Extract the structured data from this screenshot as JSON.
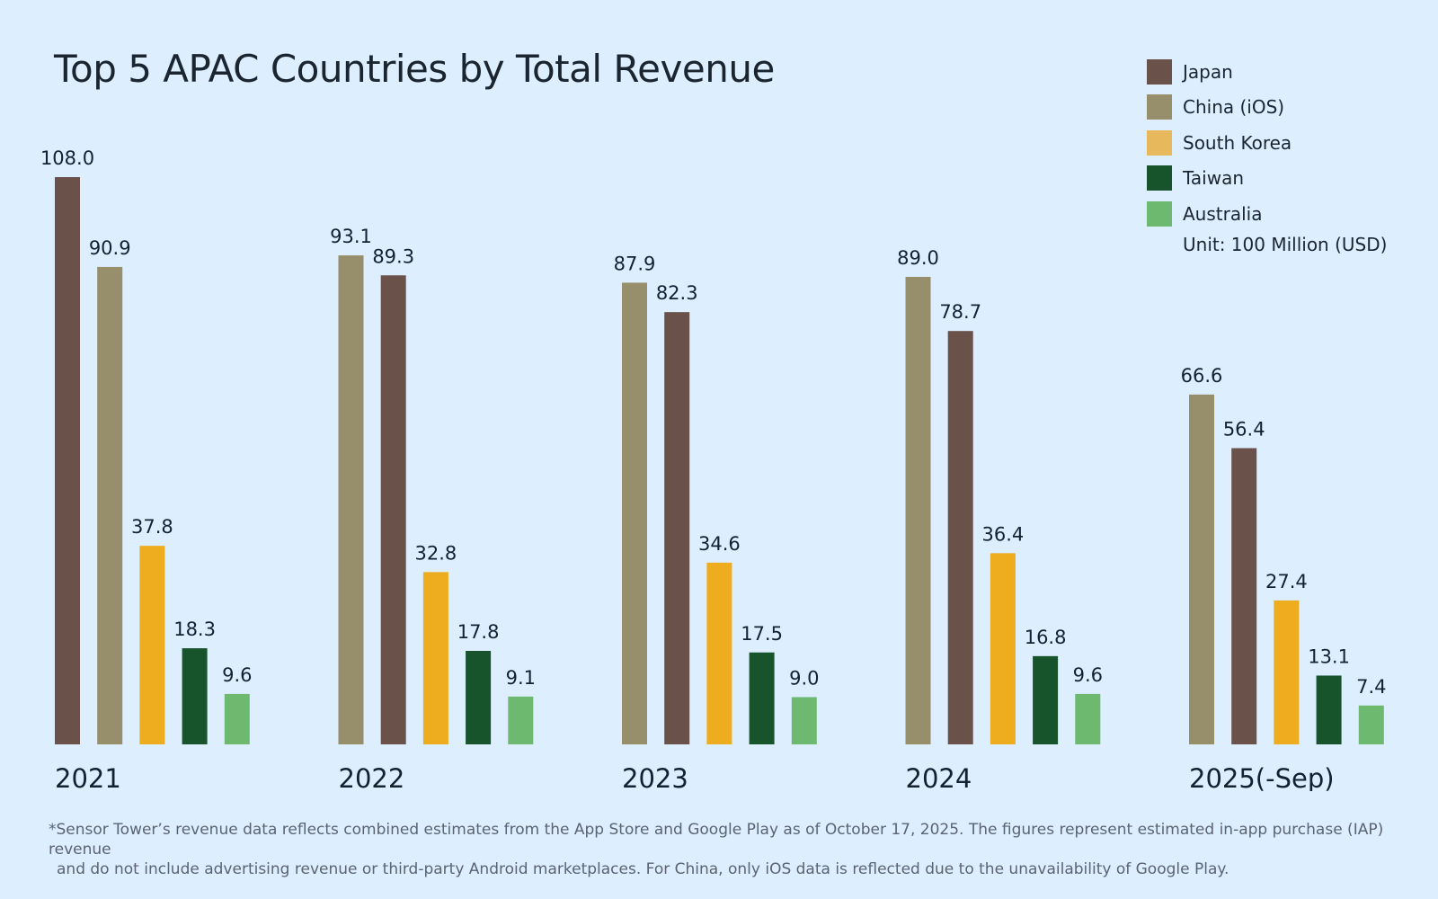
{
  "chart_data": {
    "type": "bar",
    "title": "Top 5 APAC Countries by Total Revenue",
    "unit": "Unit: 100 Million (USD)",
    "xlabel": "",
    "ylabel": "",
    "grid": false,
    "legend_position": "top-right",
    "categories": [
      "2021",
      "2022",
      "2023",
      "2024",
      "2025(-Sep)"
    ],
    "series": [
      {
        "name": "Japan",
        "color": "#6a524b"
      },
      {
        "name": "China (iOS)",
        "color": "#978e6c"
      },
      {
        "name": "South Korea",
        "color": "#eeac1f"
      },
      {
        "name": "Taiwan",
        "color": "#17532b"
      },
      {
        "name": "Australia",
        "color": "#6cb96f"
      }
    ],
    "groups": [
      {
        "category": "2021",
        "bars": [
          {
            "series": "Japan",
            "value": 108.0,
            "label": "108.0"
          },
          {
            "series": "China (iOS)",
            "value": 90.9,
            "label": "90.9"
          },
          {
            "series": "South Korea",
            "value": 37.8,
            "label": "37.8"
          },
          {
            "series": "Taiwan",
            "value": 18.3,
            "label": "18.3"
          },
          {
            "series": "Australia",
            "value": 9.6,
            "label": "9.6"
          }
        ]
      },
      {
        "category": "2022",
        "bars": [
          {
            "series": "China (iOS)",
            "value": 93.1,
            "label": "93.1"
          },
          {
            "series": "Japan",
            "value": 89.3,
            "label": "89.3"
          },
          {
            "series": "South Korea",
            "value": 32.8,
            "label": "32.8"
          },
          {
            "series": "Taiwan",
            "value": 17.8,
            "label": "17.8"
          },
          {
            "series": "Australia",
            "value": 9.1,
            "label": "9.1"
          }
        ]
      },
      {
        "category": "2023",
        "bars": [
          {
            "series": "China (iOS)",
            "value": 87.9,
            "label": "87.9"
          },
          {
            "series": "Japan",
            "value": 82.3,
            "label": "82.3"
          },
          {
            "series": "South Korea",
            "value": 34.6,
            "label": "34.6"
          },
          {
            "series": "Taiwan",
            "value": 17.5,
            "label": "17.5"
          },
          {
            "series": "Australia",
            "value": 9.0,
            "label": "9.0"
          }
        ]
      },
      {
        "category": "2024",
        "bars": [
          {
            "series": "China (iOS)",
            "value": 89.0,
            "label": "89.0"
          },
          {
            "series": "Japan",
            "value": 78.7,
            "label": "78.7"
          },
          {
            "series": "South Korea",
            "value": 36.4,
            "label": "36.4"
          },
          {
            "series": "Taiwan",
            "value": 16.8,
            "label": "16.8"
          },
          {
            "series": "Australia",
            "value": 9.6,
            "label": "9.6"
          }
        ]
      },
      {
        "category": "2025(-Sep)",
        "bars": [
          {
            "series": "China (iOS)",
            "value": 66.6,
            "label": "66.6"
          },
          {
            "series": "Japan",
            "value": 56.4,
            "label": "56.4"
          },
          {
            "series": "South Korea",
            "value": 27.4,
            "label": "27.4"
          },
          {
            "series": "Taiwan",
            "value": 13.1,
            "label": "13.1"
          },
          {
            "series": "Australia",
            "value": 7.4,
            "label": "7.4"
          }
        ]
      }
    ],
    "ylim": [
      0,
      108
    ]
  },
  "footnote": {
    "line1": "*Sensor Tower’s revenue data reflects combined estimates from the App Store and Google Play as of October 17, 2025. The figures represent estimated in-app purchase (IAP) revenue",
    "line2": "and do not include advertising revenue or third-party Android marketplaces. For China, only iOS data is reflected due to the unavailability of Google Play."
  }
}
